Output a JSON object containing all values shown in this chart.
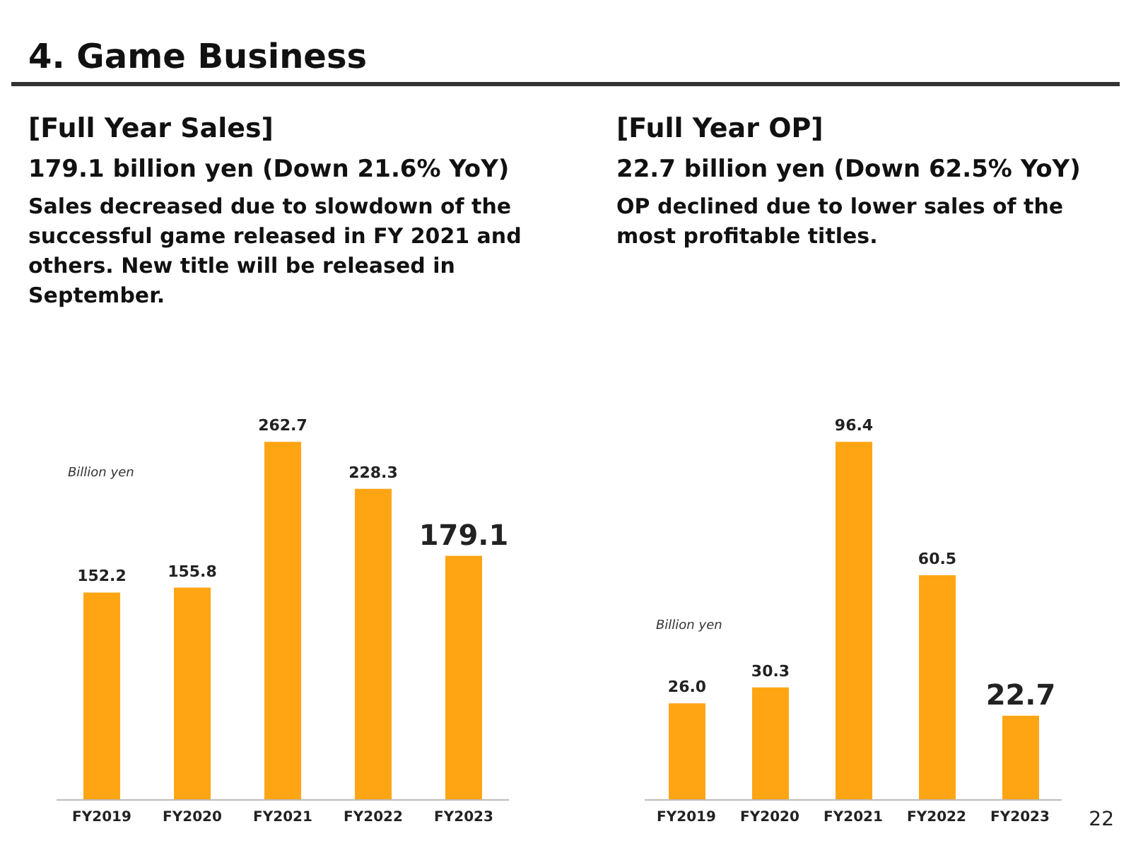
{
  "chart_data": [
    {
      "type": "bar",
      "title": "[Full Year Sales]",
      "subtitle": "179.1 billion yen (Down 21.6% YoY)",
      "ylabel": "Billion yen",
      "annotations": [
        "4. Game Business",
        "Sales decreased due to slowdown of the successful game released in FY 2021 and others.  New title will be released in September."
      ],
      "categories": [
        "FY2019",
        "FY2020",
        "FY2021",
        "FY2022",
        "FY2023"
      ],
      "values": [
        152.2,
        155.8,
        262.7,
        228.3,
        179.1
      ],
      "value_labels": [
        "152.2",
        "155.8",
        "262.7",
        "228.3",
        "179.1"
      ],
      "color": "#ffa514",
      "grid": false,
      "legend": false
    },
    {
      "type": "bar",
      "title": "[Full Year OP]",
      "subtitle": "22.7 billion yen (Down 62.5% YoY)",
      "ylabel": "Billion yen",
      "annotations": [
        "OP declined due to lower sales of the most profitable titles.",
        "22"
      ],
      "categories": [
        "FY2019",
        "FY2020",
        "FY2021",
        "FY2022",
        "FY2023"
      ],
      "values": [
        26.0,
        30.3,
        96.4,
        60.5,
        22.7
      ],
      "value_labels": [
        "26.0",
        "30.3",
        "96.4",
        "60.5",
        "22.7"
      ],
      "color": "#ffa514",
      "grid": false,
      "legend": false
    }
  ]
}
